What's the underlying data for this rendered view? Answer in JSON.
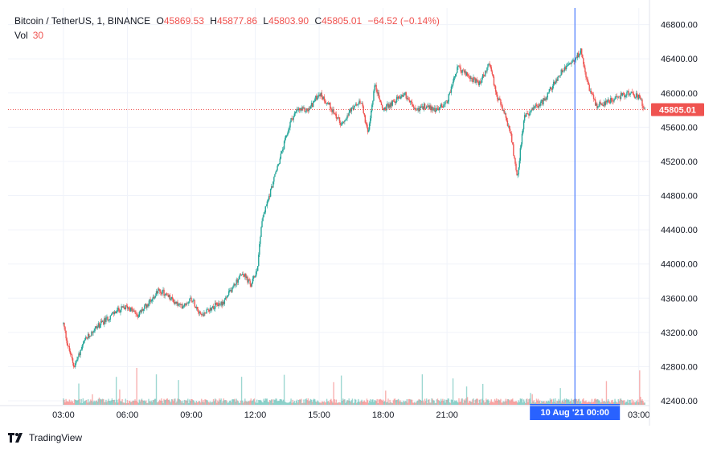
{
  "legend": {
    "symbol": "Bitcoin / TetherUS, 1, BINANCE",
    "o_label": "O",
    "o_value": "45869.53",
    "h_label": "H",
    "h_value": "45877.86",
    "l_label": "L",
    "l_value": "45803.90",
    "c_label": "C",
    "c_value": "45805.01",
    "change": "−64.52 (−0.14%)",
    "vol_label": "Vol",
    "vol_value": "30"
  },
  "brand": {
    "name": "TradingView"
  },
  "colors": {
    "up": "#26a69a",
    "down": "#ef5350",
    "crosshair": "#2962ff",
    "grid": "#f0f3fa",
    "text": "#131722"
  },
  "chart_data": {
    "type": "candlestick",
    "x_tick_labels": [
      "03:00",
      "06:00",
      "09:00",
      "12:00",
      "15:00",
      "18:00",
      "21:00",
      "10 Aug '21  00:00",
      "03:00"
    ],
    "y_tick_labels": [
      "46800.00",
      "46400.00",
      "46000.00",
      "45600.00",
      "45200.00",
      "44800.00",
      "44400.00",
      "44000.00",
      "43600.00",
      "43200.00",
      "42800.00",
      "42400.00"
    ],
    "y_ticks": [
      46800,
      46400,
      46000,
      45600,
      45200,
      44800,
      44400,
      44000,
      43600,
      43200,
      42800,
      42400
    ],
    "ylim": [
      42400,
      46900
    ],
    "last_price": 45805.01,
    "last_price_label": "45805.01",
    "crosshair_label": "10 Aug '21   00:00",
    "price_path_hours": [
      0.0,
      0.2,
      0.5,
      1.0,
      1.5,
      2.0,
      2.5,
      3.0,
      3.5,
      4.0,
      4.5,
      5.0,
      5.5,
      6.0,
      6.5,
      7.0,
      7.5,
      8.0,
      8.4,
      8.8,
      9.1,
      9.3,
      9.6,
      10.0,
      10.3,
      10.7,
      11.0,
      11.5,
      12.0,
      12.5,
      13.0,
      13.5,
      14.0,
      14.3,
      14.6,
      15.0,
      15.5,
      16.0,
      16.5,
      17.0,
      17.5,
      18.0,
      18.5,
      19.0,
      19.5,
      20.0,
      20.3,
      20.7,
      21.0,
      21.3,
      21.6,
      22.0,
      22.5,
      23.0,
      23.5,
      24.0,
      24.3,
      24.6,
      25.0,
      25.5,
      26.0,
      26.5,
      27.0,
      27.3
    ],
    "price_path": [
      43300,
      43050,
      42800,
      43100,
      43250,
      43350,
      43450,
      43500,
      43400,
      43550,
      43700,
      43600,
      43500,
      43600,
      43400,
      43500,
      43550,
      43750,
      43900,
      43750,
      43950,
      44500,
      44750,
      45100,
      45350,
      45700,
      45800,
      45800,
      46000,
      45850,
      45650,
      45800,
      45900,
      45500,
      46100,
      45800,
      45900,
      46000,
      45800,
      45850,
      45800,
      45900,
      46300,
      46200,
      46100,
      46350,
      46000,
      45750,
      45500,
      45000,
      45700,
      45800,
      45900,
      46100,
      46300,
      46400,
      46500,
      46100,
      45850,
      45900,
      45950,
      46000,
      45950,
      45805
    ]
  }
}
